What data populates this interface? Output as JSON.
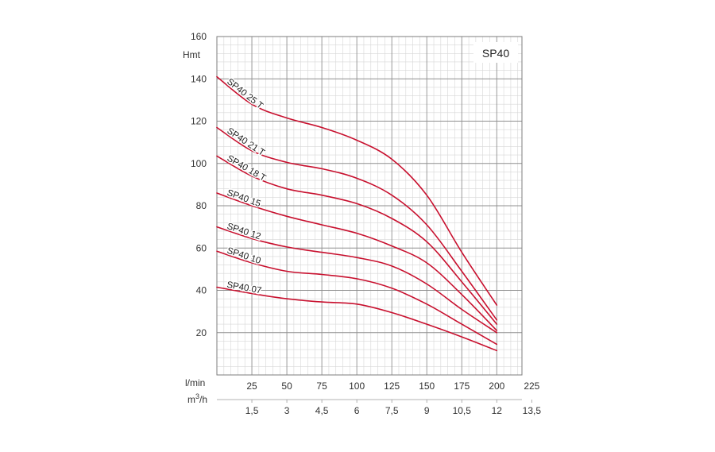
{
  "chart_data": {
    "type": "line",
    "title": "SP40",
    "ylabel": "Hmt",
    "xlabel": "l/min",
    "x2label_prefix": "m",
    "x2label_sup": "3",
    "x2label_suffix": "/h",
    "xlim": [
      0,
      218
    ],
    "ylim": [
      0,
      160
    ],
    "x_ticks": [
      25,
      50,
      75,
      100,
      125,
      150,
      175,
      200,
      225
    ],
    "x2_ticks": [
      {
        "label": "1,5",
        "value": 1.5
      },
      {
        "label": "3",
        "value": 3
      },
      {
        "label": "4,5",
        "value": 4.5
      },
      {
        "label": "6",
        "value": 6
      },
      {
        "label": "7,5",
        "value": 7.5
      },
      {
        "label": "9",
        "value": 9
      },
      {
        "label": "10,5",
        "value": 10.5
      },
      {
        "label": "12",
        "value": 12
      },
      {
        "label": "13,5",
        "value": 13.5
      }
    ],
    "y_ticks": [
      20,
      40,
      60,
      80,
      100,
      120,
      140,
      160
    ],
    "grid": true,
    "line_color": "#c8102e",
    "series": [
      {
        "name": "SP40 25 T",
        "x": [
          0,
          25,
          50,
          75,
          100,
          125,
          150,
          175,
          200
        ],
        "y": [
          141,
          128,
          121.5,
          117,
          111,
          102,
          85,
          58,
          33
        ]
      },
      {
        "name": "SP40 21 T",
        "x": [
          0,
          25,
          50,
          75,
          100,
          125,
          150,
          175,
          200
        ],
        "y": [
          117,
          106,
          100.5,
          97.5,
          93,
          85,
          71,
          49,
          26
        ]
      },
      {
        "name": "SP40 18 T",
        "x": [
          0,
          25,
          50,
          75,
          100,
          125,
          150,
          175,
          200
        ],
        "y": [
          103.5,
          94,
          88,
          85,
          81,
          74,
          63,
          44,
          24
        ]
      },
      {
        "name": "SP40 15",
        "x": [
          0,
          25,
          50,
          75,
          100,
          125,
          150,
          175,
          200
        ],
        "y": [
          86,
          80,
          75,
          71,
          67,
          61,
          53,
          38,
          21
        ]
      },
      {
        "name": "SP40 12",
        "x": [
          0,
          25,
          50,
          75,
          100,
          125,
          150,
          175,
          200
        ],
        "y": [
          70,
          64.5,
          60.5,
          58,
          55.5,
          51.5,
          43,
          31,
          20
        ]
      },
      {
        "name": "SP40 10",
        "x": [
          0,
          25,
          50,
          75,
          100,
          125,
          150,
          175,
          200
        ],
        "y": [
          58.5,
          53,
          49,
          47.5,
          45.5,
          41,
          33.5,
          24,
          14.5
        ]
      },
      {
        "name": "SP40 07",
        "x": [
          0,
          25,
          50,
          75,
          100,
          125,
          150,
          175,
          200
        ],
        "y": [
          41.5,
          38.5,
          36,
          34.5,
          33.5,
          29.5,
          24,
          18,
          11.5
        ]
      }
    ]
  }
}
